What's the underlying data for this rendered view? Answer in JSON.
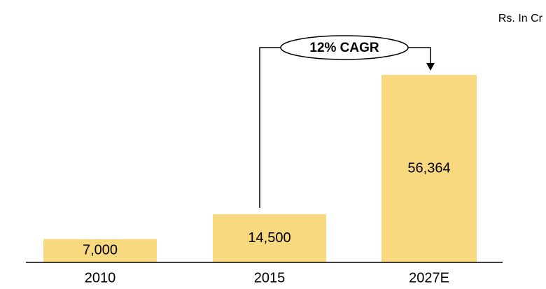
{
  "chart_data": {
    "type": "bar",
    "unit_label": "Rs. In Cr",
    "annotation": "12% CAGR",
    "categories": [
      "2010",
      "2015",
      "2027E"
    ],
    "values": [
      7000,
      14500,
      56364
    ],
    "value_labels": [
      "7,000",
      "14,500",
      "56,364"
    ],
    "color": "#f8d97f"
  }
}
